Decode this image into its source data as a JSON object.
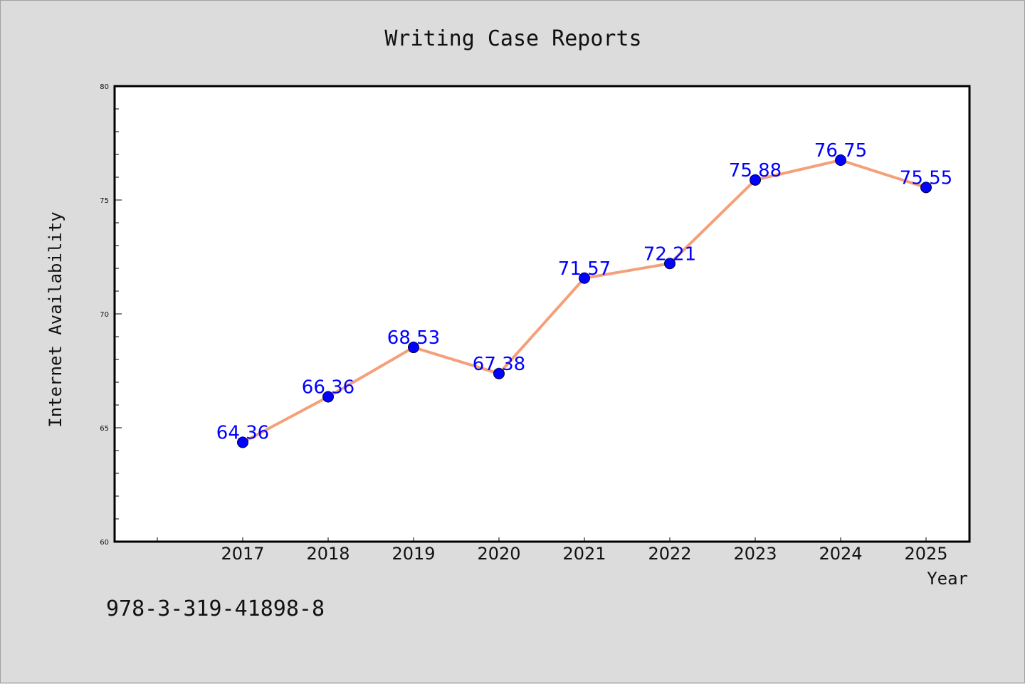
{
  "chart_data": {
    "type": "line",
    "title": "Writing Case Reports",
    "xlabel": "Year",
    "ylabel": "Internet Availability",
    "categories": [
      "2017",
      "2018",
      "2019",
      "2020",
      "2021",
      "2022",
      "2023",
      "2024",
      "2025"
    ],
    "series": [
      {
        "values": [
          64.36,
          66.36,
          68.53,
          67.38,
          71.57,
          72.21,
          75.88,
          76.75,
          75.55
        ],
        "line_color": "#f4a07a",
        "marker_color": "#0000ff"
      }
    ],
    "data_labels": [
      "64.36",
      "66.36",
      "68.53",
      "67.38",
      "71.57",
      "72.21",
      "75.88",
      "76.75",
      "75.55"
    ],
    "ylim": [
      60,
      80
    ],
    "yticks": [
      "60",
      "65",
      "70",
      "75",
      "80"
    ],
    "grid": false,
    "legend": "none"
  },
  "footer": {
    "isbn": "978-3-319-41898-8"
  },
  "colors": {
    "background": "#dcdcdc",
    "plot_area": "#ffffff",
    "line": "#f4a07a",
    "marker": "#0000ff",
    "data_label": "#0000ff"
  }
}
